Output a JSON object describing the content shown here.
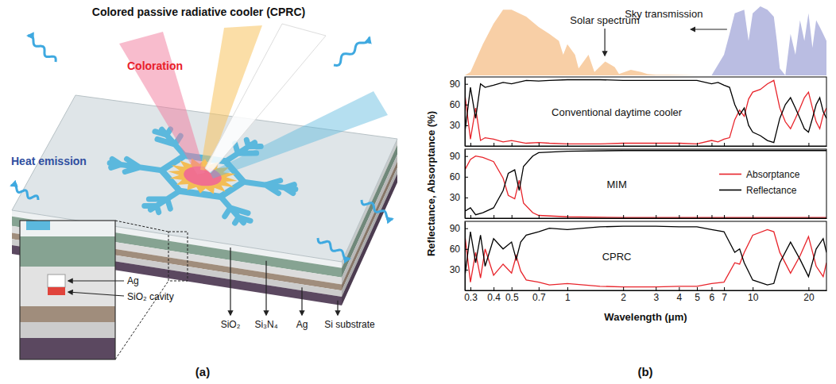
{
  "panel_labels": [
    "(a)",
    "(b)"
  ],
  "diagram": {
    "title": "Colored passive radiative cooler (CPRC)",
    "coloration": "Coloration",
    "heat_emission": "Heat emission",
    "inset_labels": [
      "Ag",
      "SiO₂ cavity"
    ],
    "layer_labels": [
      "SiO₂",
      "Si₃N₄",
      "Ag",
      "Si substrate"
    ]
  },
  "chart_data": [
    {
      "type": "area",
      "log": "x",
      "xlim": [
        0.28,
        25
      ],
      "ylim": [
        0,
        1
      ],
      "tick_labels": false,
      "x": [
        0.28,
        0.3,
        0.35,
        0.4,
        0.45,
        0.5,
        0.6,
        0.7,
        0.8,
        0.9,
        0.95,
        1,
        1.1,
        1.15,
        1.3,
        1.4,
        1.6,
        1.8,
        1.9,
        2.2,
        2.5,
        2.7,
        3,
        3.5,
        4,
        5,
        6,
        7,
        7.5,
        8,
        9,
        9.5,
        10,
        11,
        12,
        13,
        13.5,
        14,
        15,
        16,
        17,
        18,
        19,
        20,
        21,
        22,
        23,
        24,
        25
      ],
      "series": [
        {
          "name": "Solar spectrum",
          "color": "#f8cfa6",
          "values": [
            0,
            0.05,
            0.45,
            0.75,
            0.95,
            0.95,
            0.85,
            0.7,
            0.6,
            0.5,
            0.3,
            0.45,
            0.3,
            0.1,
            0.3,
            0.05,
            0.2,
            0.12,
            0.02,
            0.08,
            0.05,
            0.02,
            0.01,
            0.01,
            0.005,
            0,
            0,
            0,
            0,
            0,
            0,
            0,
            0,
            0,
            0,
            0,
            0,
            0,
            0,
            0,
            0,
            0,
            0,
            0,
            0,
            0,
            0,
            0,
            0
          ]
        },
        {
          "name": "Sky transmission",
          "color": "#babde2",
          "values": [
            0,
            0,
            0,
            0,
            0,
            0,
            0,
            0,
            0,
            0,
            0,
            0,
            0,
            0,
            0,
            0,
            0,
            0,
            0,
            0,
            0,
            0,
            0,
            0,
            0,
            0,
            0,
            0.3,
            0.6,
            0.9,
            0.95,
            0.5,
            0.9,
            1,
            0.95,
            0.85,
            0.5,
            0.1,
            0,
            0.6,
            0.3,
            0.8,
            0.5,
            0.9,
            0.4,
            0.8,
            0.7,
            0.6,
            0.5
          ]
        }
      ]
    },
    {
      "type": "line",
      "title": "Conventional daytime cooler",
      "log": "x",
      "xlim": [
        0.28,
        25
      ],
      "xticks": [
        0.3,
        0.4,
        0.5,
        0.7,
        1,
        2,
        3,
        4,
        5,
        6,
        7,
        10,
        20
      ],
      "ylim": [
        0,
        100
      ],
      "yticks": [
        30,
        60,
        90
      ],
      "tick_labels": "y",
      "x": [
        0.28,
        0.3,
        0.32,
        0.34,
        0.36,
        0.4,
        0.45,
        0.5,
        0.6,
        0.7,
        0.8,
        1,
        1.5,
        2,
        3,
        4,
        5,
        6,
        6.5,
        7,
        7.5,
        8,
        8.5,
        9,
        9.5,
        10,
        11,
        12,
        13,
        14,
        15,
        16,
        17,
        18,
        19,
        20,
        21,
        22,
        23,
        24,
        25
      ],
      "series": [
        {
          "color": "#e8242b",
          "values": [
            75,
            10,
            55,
            8,
            12,
            10,
            6,
            8,
            4,
            5,
            4,
            3,
            3,
            4,
            4,
            4,
            3,
            8,
            6,
            10,
            12,
            38,
            52,
            43,
            68,
            78,
            82,
            90,
            95,
            55,
            35,
            25,
            40,
            55,
            70,
            78,
            55,
            35,
            25,
            45,
            55
          ]
        },
        {
          "color": "#000000",
          "values": [
            20,
            85,
            40,
            90,
            85,
            88,
            92,
            90,
            95,
            94,
            95,
            96,
            96,
            95,
            95,
            95,
            95,
            90,
            92,
            88,
            85,
            60,
            45,
            55,
            30,
            20,
            15,
            8,
            5,
            40,
            60,
            70,
            55,
            40,
            25,
            20,
            40,
            60,
            70,
            50,
            40
          ]
        }
      ]
    },
    {
      "type": "line",
      "title": "MIM",
      "ylabel": "Reflectance, Absorptance (%)",
      "legend": "right",
      "log": "x",
      "xlim": [
        0.28,
        25
      ],
      "xticks": [
        0.3,
        0.4,
        0.5,
        0.7,
        1,
        2,
        3,
        4,
        5,
        6,
        7,
        10,
        20
      ],
      "ylim": [
        0,
        100
      ],
      "yticks": [
        30,
        60,
        90
      ],
      "tick_labels": "y",
      "x": [
        0.28,
        0.3,
        0.32,
        0.35,
        0.4,
        0.45,
        0.48,
        0.52,
        0.55,
        0.58,
        0.65,
        0.7,
        1,
        2,
        5,
        10,
        25
      ],
      "series": [
        {
          "name": "Absorptance",
          "color": "#e8242b",
          "values": [
            70,
            85,
            90,
            88,
            82,
            58,
            33,
            28,
            55,
            22,
            8,
            4,
            2,
            1,
            1,
            1,
            1
          ]
        },
        {
          "name": "Reflectance",
          "color": "#000000",
          "values": [
            10,
            15,
            5,
            8,
            15,
            40,
            65,
            70,
            40,
            75,
            90,
            95,
            97,
            98,
            98,
            98,
            98
          ]
        }
      ]
    },
    {
      "type": "line",
      "title": "CPRC",
      "xlabel": "Wavelength (μm)",
      "log": "x",
      "xlim": [
        0.28,
        25
      ],
      "xticks": [
        0.3,
        0.4,
        0.5,
        0.7,
        1,
        2,
        3,
        4,
        5,
        6,
        7,
        10,
        20
      ],
      "ylim": [
        0,
        100
      ],
      "yticks": [
        30,
        60,
        90
      ],
      "tick_labels": true,
      "x": [
        0.28,
        0.3,
        0.32,
        0.34,
        0.36,
        0.4,
        0.45,
        0.5,
        0.53,
        0.56,
        0.6,
        0.7,
        0.8,
        1,
        1.5,
        2,
        3,
        4,
        5,
        6,
        7,
        8,
        8.5,
        9,
        10,
        12,
        13,
        14,
        16,
        18,
        20,
        22,
        24,
        25
      ],
      "series": [
        {
          "color": "#e8242b",
          "values": [
            80,
            12,
            55,
            18,
            60,
            22,
            38,
            25,
            50,
            28,
            15,
            12,
            8,
            10,
            6,
            5,
            5,
            6,
            6,
            10,
            12,
            40,
            38,
            55,
            80,
            88,
            85,
            55,
            25,
            50,
            78,
            35,
            20,
            40
          ]
        },
        {
          "color": "#000000",
          "values": [
            20,
            85,
            40,
            80,
            35,
            75,
            60,
            70,
            45,
            70,
            80,
            85,
            90,
            88,
            92,
            93,
            93,
            92,
            92,
            88,
            85,
            55,
            60,
            40,
            15,
            8,
            10,
            40,
            70,
            45,
            20,
            60,
            75,
            55
          ]
        }
      ]
    }
  ]
}
